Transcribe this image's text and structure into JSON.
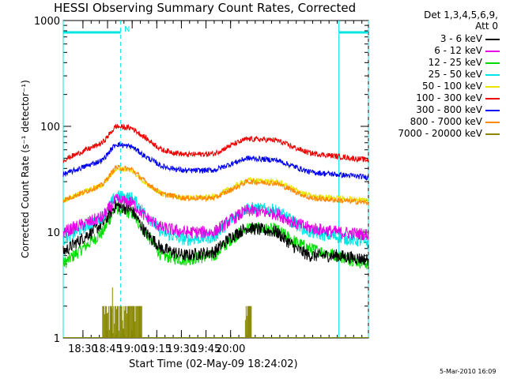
{
  "chart_data": {
    "type": "line",
    "title": "HESSI Observing Summary Count Rates, Corrected",
    "xlabel": "Start Time (02-May-09 18:24:02)",
    "ylabel": "Corrected Count Rate (s⁻¹ detector⁻¹)",
    "yscale": "log",
    "ylim": [
      1,
      1000
    ],
    "xlim_minutes": [
      18.0,
      204.0
    ],
    "x_ticks": [
      "18:30",
      "18:45",
      "19:00",
      "19:15",
      "19:30",
      "19:45",
      "20:00"
    ],
    "y_ticks": [
      "1",
      "10",
      "100",
      "1000"
    ],
    "legend_header": "Det 1,3,4,5,6,9,",
    "attenuator_label": "Att 0",
    "attenuator_marker": "N",
    "legend_position": "right",
    "x_knots": [
      18,
      42,
      50,
      60,
      68,
      78,
      92,
      110,
      120,
      130,
      148,
      160,
      168,
      185,
      204
    ],
    "series": [
      {
        "name": "3 - 6 keV",
        "color": "#000000",
        "values": [
          6.5,
          12,
          18,
          16,
          10,
          7,
          6,
          6.5,
          9,
          11,
          10,
          7,
          6,
          6,
          5.5
        ]
      },
      {
        "name": "6 - 12 keV",
        "color": "#e600e6",
        "values": [
          10,
          14,
          20,
          19,
          14,
          11,
          10,
          10,
          13,
          16,
          15,
          12,
          11,
          10,
          9.5
        ]
      },
      {
        "name": "12 - 25 keV",
        "color": "#00dd00",
        "values": [
          5,
          10,
          17,
          15,
          10,
          6,
          5.5,
          6,
          8.5,
          11,
          10.5,
          8,
          7,
          6,
          5
        ]
      },
      {
        "name": "25 - 50 keV",
        "color": "#00e5e5",
        "values": [
          8.5,
          14,
          22,
          21,
          15,
          10,
          8.5,
          9,
          13,
          17,
          16,
          12,
          10,
          9,
          8
        ]
      },
      {
        "name": "50 - 100 keV",
        "color": "#e6e600",
        "values": [
          20,
          28,
          40,
          38,
          29,
          23,
          21,
          21.5,
          26,
          31,
          30,
          25,
          22,
          21,
          20
        ]
      },
      {
        "name": "100 - 300 keV",
        "color": "#ee0000",
        "values": [
          48,
          70,
          100,
          96,
          78,
          60,
          54,
          55,
          66,
          76,
          74,
          62,
          56,
          52,
          48
        ]
      },
      {
        "name": "300 - 800 keV",
        "color": "#0000ee",
        "values": [
          35,
          48,
          68,
          64,
          52,
          42,
          38,
          38.5,
          44,
          50,
          48,
          41,
          37,
          35,
          33
        ]
      },
      {
        "name": "800 - 7000 keV",
        "color": "#ff8800",
        "values": [
          20,
          28,
          41,
          39,
          30,
          23,
          21,
          21,
          25,
          30,
          29,
          24,
          21,
          20,
          19
        ]
      },
      {
        "name": "7000 - 20000 keV",
        "color": "#888800",
        "values": [
          1,
          1,
          1,
          1,
          1,
          1,
          1,
          1,
          1,
          1,
          1,
          1,
          1,
          1,
          1
        ]
      }
    ],
    "spikes_7000_20000": {
      "ranges_minutes": [
        [
          42,
          66
        ],
        [
          129,
          133
        ]
      ],
      "peak": 3,
      "typical_high": 2
    },
    "night_segments_minutes": [
      [
        18.0,
        53.0
      ],
      [
        186.0,
        204.0
      ]
    ],
    "night_marker_color": "#00e5e5",
    "boundary_lines_minutes": [
      18.0,
      53.0,
      186.0,
      204.0
    ]
  },
  "footer": "5-Mar-2010 16:09"
}
